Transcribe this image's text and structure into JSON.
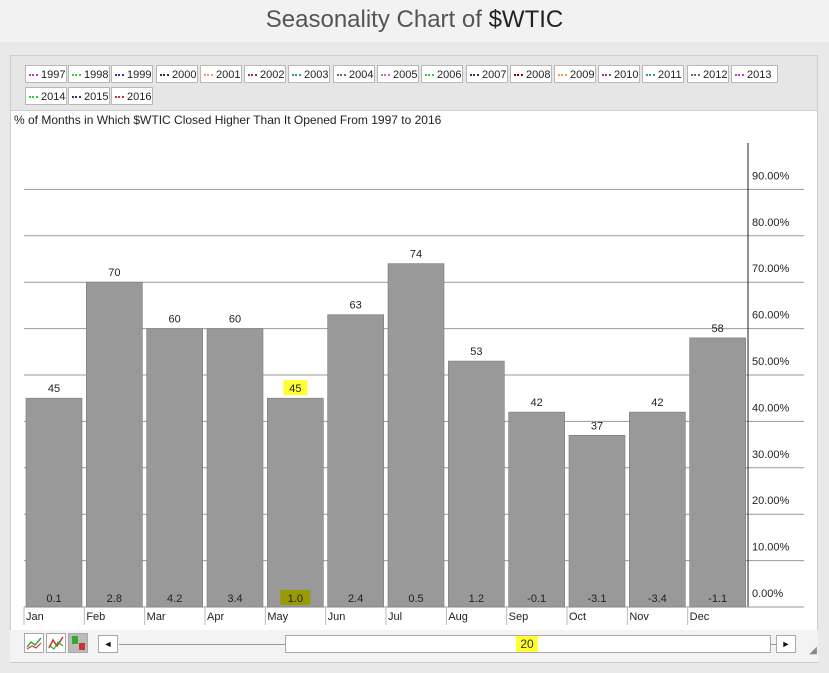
{
  "page": {
    "title_prefix": "Seasonality Chart of ",
    "title_symbol": "$WTIC",
    "subtitle": "% of Months in Which $WTIC Closed Higher Than It Opened From 1997 to 2016"
  },
  "legend": {
    "items": [
      {
        "label": "1997",
        "color": "#cc33cc"
      },
      {
        "label": "1998",
        "color": "#33cc33"
      },
      {
        "label": "1999",
        "color": "#333399"
      },
      {
        "label": "2000",
        "color": "#333333"
      },
      {
        "label": "2001",
        "color": "#ff9966"
      },
      {
        "label": "2002",
        "color": "#993366"
      },
      {
        "label": "2003",
        "color": "#339999"
      },
      {
        "label": "2004",
        "color": "#666666"
      },
      {
        "label": "2005",
        "color": "#cc66cc"
      },
      {
        "label": "2006",
        "color": "#33cc33"
      },
      {
        "label": "2007",
        "color": "#333366"
      },
      {
        "label": "2008",
        "color": "#880000"
      },
      {
        "label": "2009",
        "color": "#ff9933"
      },
      {
        "label": "2010",
        "color": "#993399"
      },
      {
        "label": "2011",
        "color": "#339999"
      },
      {
        "label": "2012",
        "color": "#666666"
      },
      {
        "label": "2013",
        "color": "#cc33cc"
      },
      {
        "label": "2014",
        "color": "#33cc33"
      },
      {
        "label": "2015",
        "color": "#333366"
      },
      {
        "label": "2016",
        "color": "#cc3333"
      }
    ]
  },
  "slider": {
    "value_label": "20",
    "left_arrow": "◄",
    "right_arrow": "►"
  },
  "chart_data": {
    "type": "bar",
    "title": "% of Months in Which $WTIC Closed Higher Than It Opened From 1997 to 2016",
    "categories": [
      "Jan",
      "Feb",
      "Mar",
      "Apr",
      "May",
      "Jun",
      "Jul",
      "Aug",
      "Sep",
      "Oct",
      "Nov",
      "Dec"
    ],
    "series": [
      {
        "values": [
          45,
          70,
          60,
          60,
          45,
          63,
          74,
          53,
          42,
          37,
          42,
          58
        ]
      },
      {
        "values": [
          0.1,
          2.8,
          4.2,
          3.4,
          1.0,
          2.4,
          0.5,
          1.2,
          -0.1,
          -3.1,
          -3.4,
          -1.1
        ]
      }
    ],
    "value_labels": [
      "45",
      "70",
      "60",
      "60",
      "45",
      "63",
      "74",
      "53",
      "42",
      "37",
      "42",
      "58"
    ],
    "avg_labels": [
      "0.1",
      "2.8",
      "4.2",
      "3.4",
      "1.0",
      "2.4",
      "0.5",
      "1.2",
      "-0.1",
      "-3.1",
      "-3.4",
      "-1.1"
    ],
    "highlight_category": "May",
    "highlight_color": "#ffff33",
    "bar_color": "#999999",
    "ylim": [
      0,
      100
    ],
    "yticks": [
      "0.00%",
      "10.00%",
      "20.00%",
      "30.00%",
      "40.00%",
      "50.00%",
      "60.00%",
      "70.00%",
      "80.00%",
      "90.00%"
    ],
    "ytick_values": [
      0,
      10,
      20,
      30,
      40,
      50,
      60,
      70,
      80,
      90
    ],
    "y_axis_side": "right",
    "grid": true
  }
}
